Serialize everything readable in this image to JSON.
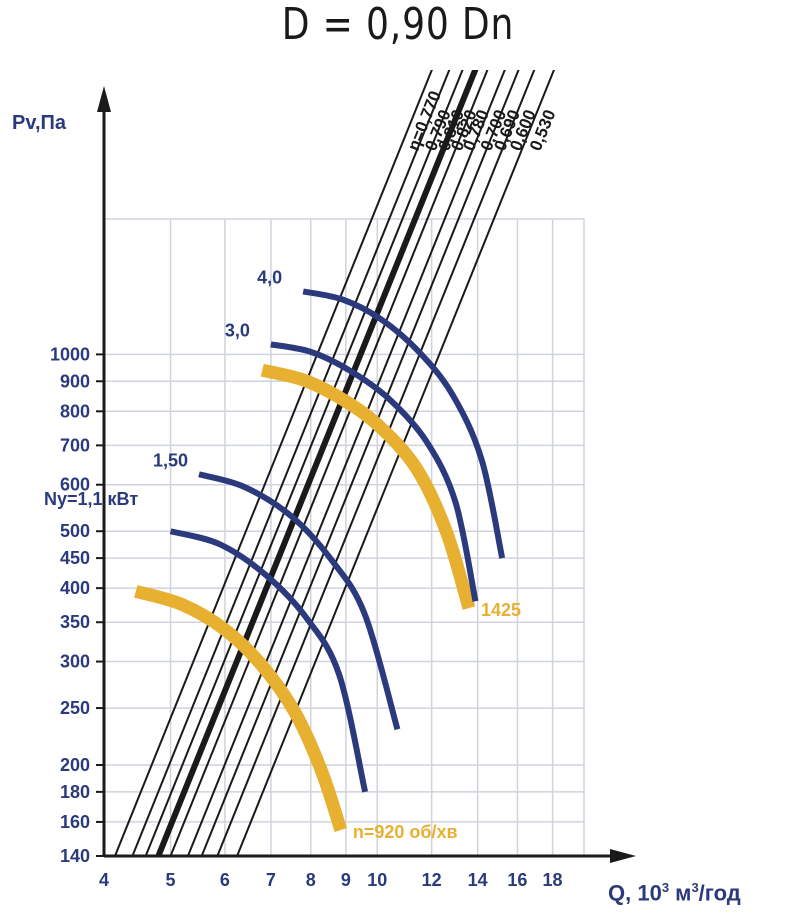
{
  "chart_data": {
    "type": "line",
    "title": "D = 0,90 Dn",
    "ylabel": "Pv,Па",
    "xlabel_base": "Q, 10",
    "xlabel_exp": "3",
    "xlabel_unit_pre": " м",
    "xlabel_unit_exp": "3",
    "xlabel_unit_post": "/год",
    "x_scale": "log",
    "y_scale": "log",
    "xlim": [
      4,
      20
    ],
    "ylim": [
      140,
      1700
    ],
    "x_ticks": [
      4,
      5,
      6,
      7,
      8,
      9,
      10,
      12,
      14,
      16,
      18
    ],
    "x_tick_labels": [
      "4",
      "5",
      "6",
      "7",
      "8",
      "9",
      "10",
      "12",
      "14",
      "16",
      "18"
    ],
    "y_ticks": [
      140,
      160,
      180,
      200,
      250,
      300,
      350,
      400,
      450,
      500,
      600,
      700,
      800,
      900,
      1000
    ],
    "y_tick_labels": [
      "140",
      "160",
      "180",
      "200",
      "250",
      "300",
      "350",
      "400",
      "450",
      "500",
      "600",
      "700",
      "800",
      "900",
      "1000"
    ],
    "grid": true,
    "efficiency_lines": [
      {
        "label": "η=0,770",
        "at_y140_x": 4.15
      },
      {
        "label": "0,790",
        "at_y140_x": 4.4
      },
      {
        "label": "0,810",
        "at_y140_x": 4.6
      },
      {
        "label": "0,820",
        "at_y140_x": 4.8,
        "bold": true
      },
      {
        "label": "0,780",
        "at_y140_x": 5.0
      },
      {
        "label": "0,700",
        "at_y140_x": 5.3
      },
      {
        "label": "0,690",
        "at_y140_x": 5.55
      },
      {
        "label": "0,600",
        "at_y140_x": 5.85
      },
      {
        "label": "0,530",
        "at_y140_x": 6.25
      }
    ],
    "power_label_prefix": "Ny=1,1 кВт",
    "series": [
      {
        "name": "n=920 об/хв",
        "color": "#e8b030",
        "kind": "speed",
        "points": [
          [
            4.45,
            395
          ],
          [
            5.2,
            375
          ],
          [
            6.0,
            340
          ],
          [
            6.8,
            295
          ],
          [
            7.6,
            245
          ],
          [
            8.3,
            195
          ],
          [
            8.85,
            155
          ]
        ]
      },
      {
        "name": "1425",
        "color": "#e8b030",
        "kind": "speed",
        "points": [
          [
            6.8,
            940
          ],
          [
            7.8,
            905
          ],
          [
            8.8,
            845
          ],
          [
            10.0,
            760
          ],
          [
            11.4,
            640
          ],
          [
            12.6,
            500
          ],
          [
            13.6,
            370
          ]
        ]
      },
      {
        "name": "1,1",
        "color": "#2b3a7c",
        "kind": "power",
        "points": [
          [
            5.0,
            500
          ],
          [
            5.9,
            475
          ],
          [
            6.9,
            420
          ],
          [
            7.9,
            355
          ],
          [
            8.8,
            285
          ],
          [
            9.6,
            180
          ]
        ]
      },
      {
        "name": "1,50",
        "color": "#2b3a7c",
        "kind": "power",
        "points": [
          [
            5.5,
            625
          ],
          [
            6.4,
            595
          ],
          [
            7.5,
            530
          ],
          [
            8.6,
            445
          ],
          [
            9.6,
            360
          ],
          [
            10.7,
            230
          ]
        ]
      },
      {
        "name": "3,0",
        "color": "#2b3a7c",
        "kind": "power",
        "points": [
          [
            7.0,
            1040
          ],
          [
            8.0,
            1010
          ],
          [
            9.1,
            940
          ],
          [
            10.4,
            840
          ],
          [
            11.8,
            710
          ],
          [
            13.0,
            560
          ],
          [
            13.9,
            380
          ]
        ]
      },
      {
        "name": "4,0",
        "color": "#2b3a7c",
        "kind": "power",
        "points": [
          [
            7.8,
            1280
          ],
          [
            8.9,
            1240
          ],
          [
            10.1,
            1150
          ],
          [
            11.5,
            1010
          ],
          [
            12.9,
            850
          ],
          [
            14.2,
            660
          ],
          [
            15.2,
            450
          ]
        ]
      }
    ],
    "legend": "none"
  }
}
